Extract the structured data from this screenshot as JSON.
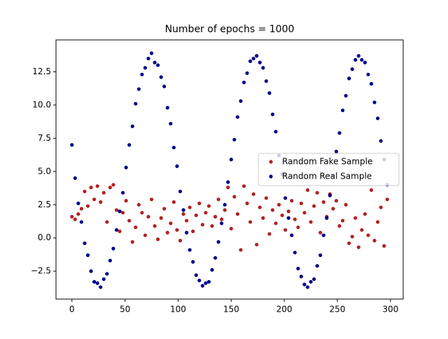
{
  "chart_data": {
    "type": "scatter",
    "title": "Number of epochs = 1000",
    "x": [
      0,
      3,
      6,
      9,
      12,
      15,
      18,
      21,
      24,
      27,
      30,
      33,
      36,
      39,
      42,
      45,
      48,
      51,
      54,
      57,
      60,
      63,
      66,
      69,
      72,
      75,
      78,
      81,
      84,
      87,
      90,
      93,
      96,
      99,
      102,
      105,
      108,
      111,
      114,
      117,
      120,
      123,
      126,
      129,
      132,
      135,
      138,
      141,
      144,
      147,
      150,
      153,
      156,
      159,
      162,
      165,
      168,
      171,
      174,
      177,
      180,
      183,
      186,
      189,
      192,
      195,
      198,
      201,
      204,
      207,
      210,
      213,
      216,
      219,
      222,
      225,
      228,
      231,
      234,
      237,
      240,
      243,
      246,
      249,
      252,
      255,
      258,
      261,
      264,
      267,
      270,
      273,
      276,
      279,
      282,
      285,
      288,
      291,
      294,
      297
    ],
    "series": [
      {
        "name": "Random Fake Sample",
        "color": "#b22222",
        "values": [
          1.6,
          1.4,
          1.8,
          2.2,
          3.5,
          2.4,
          3.8,
          2.9,
          3.9,
          2.7,
          3.4,
          1.2,
          3.8,
          4.0,
          2.1,
          0.5,
          1.9,
          2.8,
          1.3,
          -0.3,
          0.8,
          2.5,
          1.9,
          0.2,
          1.6,
          2.9,
          0.9,
          -0.1,
          1.5,
          2.2,
          0.4,
          1.1,
          2.7,
          0.6,
          -0.2,
          1.8,
          1.3,
          2.3,
          0.5,
          1.7,
          2.6,
          1.0,
          1.9,
          2.4,
          0.9,
          1.6,
          2.9,
          1.4,
          2.1,
          3.8,
          0.7,
          3.1,
          1.8,
          -0.9,
          3.9,
          2.6,
          1.2,
          3.3,
          -0.5,
          2.3,
          1.5,
          3.0,
          0.3,
          2.1,
          1.1,
          2.5,
          1.7,
          0.6,
          2.0,
          2.8,
          1.4,
          0.8,
          2.6,
          1.9,
          3.6,
          1.2,
          2.4,
          3.4,
          0.4,
          2.7,
          1.6,
          3.3,
          2.2,
          2.8,
          0.9,
          1.3,
          2.5,
          -0.4,
          0.1,
          1.5,
          -0.7,
          0.6,
          1.8,
          0.2,
          3.6,
          -0.2,
          1.2,
          2.3,
          -0.6,
          2.9
        ]
      },
      {
        "name": "Random Real Sample",
        "color": "#00008b",
        "values": [
          7.0,
          4.5,
          2.6,
          1.2,
          -0.4,
          -1.3,
          -2.5,
          -3.3,
          -3.4,
          -3.7,
          -3.1,
          -2.7,
          -1.7,
          -0.8,
          0.6,
          2.0,
          3.4,
          5.3,
          7.0,
          8.4,
          10.1,
          11.2,
          12.3,
          12.8,
          13.5,
          13.9,
          13.2,
          13.0,
          12.1,
          11.4,
          9.8,
          8.6,
          6.8,
          5.4,
          3.5,
          2.1,
          0.4,
          -0.9,
          -1.8,
          -2.8,
          -3.2,
          -3.6,
          -3.4,
          -3.3,
          -2.4,
          -1.5,
          -0.3,
          1.1,
          2.5,
          4.2,
          5.9,
          7.4,
          9.1,
          10.3,
          11.7,
          12.4,
          13.3,
          13.5,
          13.7,
          13.2,
          12.8,
          11.8,
          10.9,
          9.3,
          8.0,
          6.2,
          4.8,
          3.0,
          1.5,
          0.2,
          -1.1,
          -2.3,
          -2.9,
          -3.5,
          -3.7,
          -3.3,
          -3.1,
          -2.1,
          -1.3,
          0.2,
          1.5,
          3.2,
          4.7,
          6.5,
          7.9,
          9.6,
          10.7,
          12.0,
          12.7,
          13.4,
          13.7,
          13.4,
          13.2,
          12.3,
          11.6,
          10.2,
          9.0,
          7.3,
          5.9,
          4.0
        ]
      }
    ],
    "xlim": [
      -15,
      312
    ],
    "ylim": [
      -4.6,
      14.9
    ],
    "xticks": [
      0,
      50,
      100,
      150,
      200,
      250,
      300
    ],
    "yticks": [
      {
        "value": -2.5,
        "label": "−2.5"
      },
      {
        "value": 0,
        "label": "0.0"
      },
      2.5,
      {
        "value": 5,
        "label": "5.0"
      },
      7.5,
      {
        "value": 10,
        "label": "10.0"
      },
      12.5
    ],
    "legend": "center right"
  }
}
